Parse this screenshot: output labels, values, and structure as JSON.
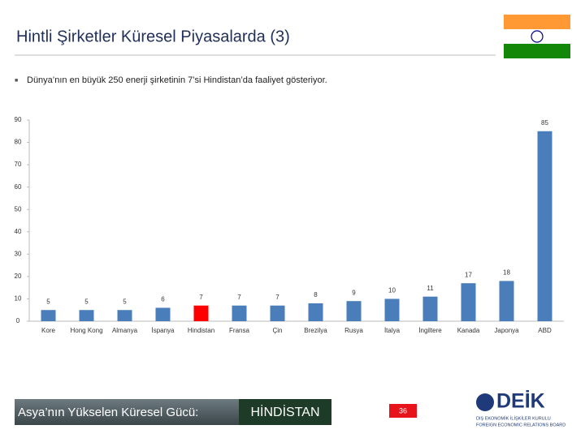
{
  "header": {
    "title": "Hintli Şirketler Küresel Piyasalarda (3)",
    "bullet": "Dünya’nın en büyük 250 enerji şirketinin 7’si Hindistan’da faaliyet gösteriyor."
  },
  "chart_data": {
    "type": "bar",
    "categories": [
      "Kore",
      "Hong Kong",
      "Almanya",
      "İspanya",
      "Hindistan",
      "Fransa",
      "Çin",
      "Brezilya",
      "Rusya",
      "İtalya",
      "İngiltere",
      "Kanada",
      "Japonya",
      "ABD"
    ],
    "values": [
      5,
      5,
      5,
      6,
      7,
      7,
      7,
      8,
      9,
      10,
      11,
      17,
      18,
      85
    ],
    "colors": [
      "#4a7ebb",
      "#4a7ebb",
      "#4a7ebb",
      "#4a7ebb",
      "#ff0000",
      "#4a7ebb",
      "#4a7ebb",
      "#4a7ebb",
      "#4a7ebb",
      "#4a7ebb",
      "#4a7ebb",
      "#4a7ebb",
      "#4a7ebb",
      "#4a7ebb"
    ],
    "ylim": [
      0,
      90
    ],
    "yticks": [
      0,
      10,
      20,
      30,
      40,
      50,
      60,
      70,
      80,
      90
    ],
    "grid": false
  },
  "footer": {
    "tagline": "Asya’nın Yükselen Küresel Gücü:",
    "country": "HİNDİSTAN",
    "page_number": "36"
  },
  "logo": {
    "name": "DEİK",
    "line1": "DIŞ EKONOMİK İLİŞKİLER KURULU",
    "line2": "FOREIGN ECONOMIC RELATIONS BOARD"
  }
}
